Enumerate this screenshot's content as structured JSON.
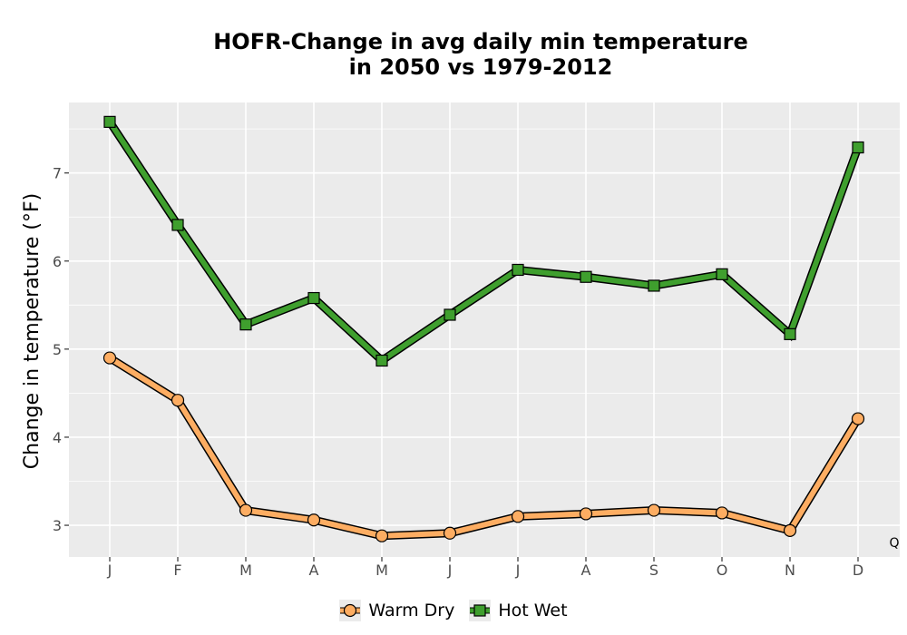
{
  "chart_data": {
    "type": "line",
    "title_lines": [
      "HOFR-Change in avg daily min temperature",
      "in 2050 vs 1979-2012"
    ],
    "xlabel": "",
    "ylabel": "Change in temperature (°F)",
    "categories": [
      "J",
      "F",
      "M",
      "A",
      "M",
      "J",
      "J",
      "A",
      "S",
      "O",
      "N",
      "D"
    ],
    "yticks": [
      3,
      4,
      5,
      6,
      7
    ],
    "ylim": [
      2.64,
      7.8
    ],
    "grid": true,
    "legend_position": "bottom",
    "corner_label": "Q",
    "series": [
      {
        "name": "Warm Dry",
        "marker": "circle",
        "color": "#fdad62",
        "values": [
          4.9,
          4.42,
          3.17,
          3.06,
          2.88,
          2.91,
          3.1,
          3.13,
          3.17,
          3.14,
          2.94,
          4.21
        ]
      },
      {
        "name": "Hot Wet",
        "marker": "square",
        "color": "#3f9f2e",
        "values": [
          7.58,
          6.41,
          5.28,
          5.58,
          4.87,
          5.39,
          5.9,
          5.82,
          5.72,
          5.85,
          5.17,
          7.29
        ]
      }
    ]
  }
}
